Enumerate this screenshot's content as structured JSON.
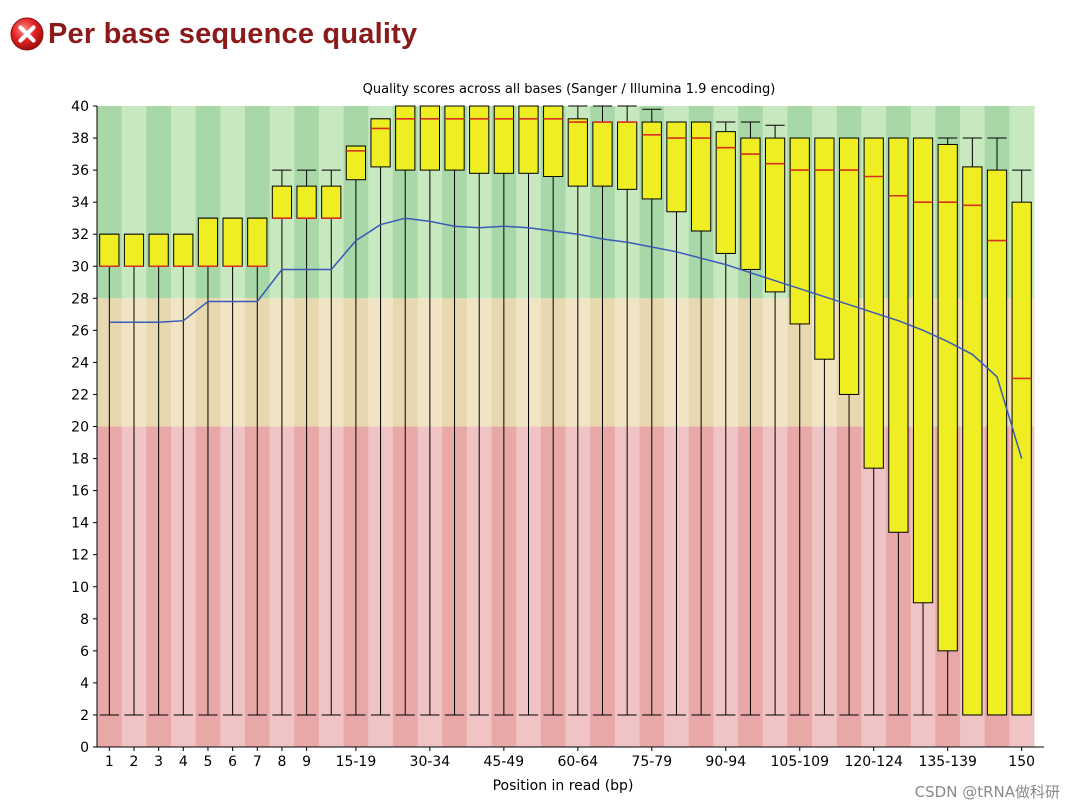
{
  "header": {
    "status_icon": "fail-x-icon",
    "title": "Per base sequence quality"
  },
  "watermark": "CSDN @tRNA做科研",
  "chart_data": {
    "type": "box",
    "title": "Quality scores across all bases (Sanger / Illumina 1.9 encoding)",
    "xlabel": "Position in read (bp)",
    "ylabel": "",
    "ylim": [
      0,
      40
    ],
    "yticks": [
      0,
      2,
      4,
      6,
      8,
      10,
      12,
      14,
      16,
      18,
      20,
      22,
      24,
      26,
      28,
      30,
      32,
      34,
      36,
      38,
      40
    ],
    "zones": [
      {
        "name": "good",
        "from": 28,
        "to": 40,
        "color_a": "#a8d8a8",
        "color_b": "#c8e8c0"
      },
      {
        "name": "reasonable",
        "from": 20,
        "to": 28,
        "color_a": "#e8d8b0",
        "color_b": "#f0e4c4"
      },
      {
        "name": "poor",
        "from": 0,
        "to": 20,
        "color_a": "#e8a8a8",
        "color_b": "#f0c4c4"
      }
    ],
    "colors": {
      "box": "#eeee22",
      "median": "#d83020",
      "mean": "#3a5ab8",
      "whisker": "#000000"
    },
    "categories": [
      "1",
      "2",
      "3",
      "4",
      "5",
      "6",
      "7",
      "8",
      "9",
      "10-14",
      "15-19",
      "20-24",
      "25-29",
      "30-34",
      "35-39",
      "40-44",
      "45-49",
      "50-54",
      "55-59",
      "60-64",
      "65-69",
      "70-74",
      "75-79",
      "80-84",
      "85-89",
      "90-94",
      "95-99",
      "100-104",
      "105-109",
      "110-114",
      "115-119",
      "120-124",
      "125-129",
      "130-134",
      "135-139",
      "140-144",
      "145-149",
      "150"
    ],
    "tick_labels_shown": [
      "1",
      "2",
      "3",
      "4",
      "5",
      "6",
      "7",
      "8",
      "9",
      "",
      "15-19",
      "",
      "",
      "30-34",
      "",
      "",
      "45-49",
      "",
      "",
      "60-64",
      "",
      "",
      "75-79",
      "",
      "",
      "90-94",
      "",
      "",
      "105-109",
      "",
      "",
      "120-124",
      "",
      "",
      "135-139",
      "",
      "",
      "150"
    ],
    "q1": [
      30,
      30,
      30,
      30,
      30,
      30,
      30,
      33,
      33,
      33,
      35.4,
      36.2,
      36,
      36,
      36,
      35.8,
      35.8,
      35.8,
      35.6,
      35,
      35,
      34.8,
      34.2,
      33.4,
      32.2,
      30.8,
      29.8,
      28.4,
      26.4,
      24.2,
      22,
      17.4,
      13.4,
      9,
      6,
      2,
      2,
      2
    ],
    "median": [
      30,
      30,
      30,
      30,
      30,
      30,
      30,
      33,
      33,
      33,
      37.2,
      38.6,
      39.2,
      39.2,
      39.2,
      39.2,
      39.2,
      39.2,
      39.2,
      39,
      39,
      39,
      38.2,
      38,
      38,
      37.4,
      37,
      36.4,
      36,
      36,
      36,
      35.6,
      34.4,
      34,
      34,
      33.8,
      31.6,
      23
    ],
    "q3": [
      32,
      32,
      32,
      32,
      33,
      33,
      33,
      35,
      35,
      35,
      37.5,
      39.2,
      40,
      40,
      40,
      40,
      40,
      40,
      40,
      39.2,
      39,
      39,
      39,
      39,
      39,
      38.4,
      38,
      38,
      38,
      38,
      38,
      38,
      38,
      38,
      37.6,
      36.2,
      36,
      34
    ],
    "upper": [
      32,
      32,
      32,
      32,
      33,
      33,
      33,
      36,
      36,
      36,
      37.5,
      39.2,
      40,
      40,
      40,
      40,
      40,
      40,
      40,
      40,
      40,
      40,
      39.8,
      39,
      39,
      39,
      39,
      38.8,
      38,
      38,
      38,
      38,
      38,
      38,
      38,
      38,
      38,
      36
    ],
    "lower": [
      2,
      2,
      2,
      2,
      2,
      2,
      2,
      2,
      2,
      2,
      2,
      2,
      2,
      2,
      2,
      2,
      2,
      2,
      2,
      2,
      2,
      2,
      2,
      2,
      2,
      2,
      2,
      2,
      2,
      2,
      2,
      2,
      2,
      2,
      2,
      2,
      2,
      2
    ],
    "mean": [
      26.5,
      26.5,
      26.5,
      26.6,
      27.8,
      27.8,
      27.8,
      29.8,
      29.8,
      29.8,
      31.6,
      32.6,
      33,
      32.8,
      32.5,
      32.4,
      32.5,
      32.4,
      32.2,
      32,
      31.7,
      31.5,
      31.2,
      30.9,
      30.5,
      30.1,
      29.6,
      29.1,
      28.6,
      28.1,
      27.6,
      27.1,
      26.6,
      26,
      25.3,
      24.5,
      23.1,
      18
    ]
  }
}
